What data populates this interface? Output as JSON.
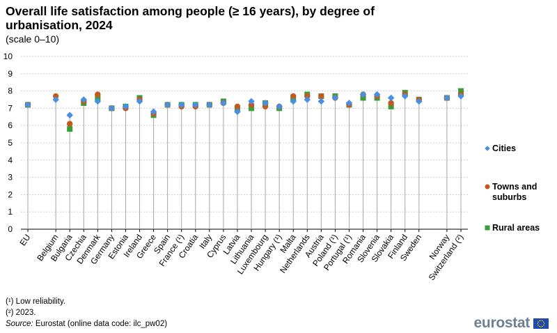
{
  "header": {
    "title": "Overall life satisfaction among people (≥ 16 years), by degree of urbanisation, 2024",
    "subtitle": "(scale 0–10)"
  },
  "footnotes": [
    "(¹) Low reliability.",
    "(²) 2023."
  ],
  "source": {
    "label": "Source:",
    "text": " Eurostat (online data code: ilc_pw02)"
  },
  "logo": {
    "word": "eurostat",
    "flag_icon": "eu-flag-icon"
  },
  "colors": {
    "cities": "#4a90e2",
    "towns": "#c4591d",
    "rural": "#3a9d3a",
    "grid": "#cfcfcf",
    "stem": "#a6a6a6"
  },
  "chart_data": {
    "type": "scatter",
    "ylim": [
      0,
      10
    ],
    "yticks": [
      "0",
      "1",
      "2",
      "3",
      "4",
      "5",
      "6",
      "7",
      "8",
      "9",
      "10"
    ],
    "grid": true,
    "legend_placement": "right",
    "categories": [
      "EU",
      "",
      "Belgium",
      "Bulgaria",
      "Czechia",
      "Denmark",
      "Germany",
      "Estonia",
      "Ireland",
      "Greece",
      "Spain",
      "France (¹)",
      "Croatia",
      "Italy",
      "Cyprus",
      "Latvia",
      "Lithuania",
      "Luxembourg",
      "Hungary (¹)",
      "Malta",
      "Netherlands",
      "Austria",
      "Poland (¹)",
      "Portugal (¹)",
      "Romania",
      "Slovenia",
      "Slovakia",
      "Finland",
      "Sweden",
      "",
      "Norway",
      "Switzerland (²)"
    ],
    "series": [
      {
        "name": "Rural areas",
        "marker": "square",
        "values": [
          7.2,
          null,
          null,
          5.8,
          7.3,
          7.6,
          7.0,
          7.1,
          7.6,
          6.6,
          7.2,
          7.2,
          7.2,
          7.2,
          7.4,
          7.0,
          7.0,
          7.3,
          7.0,
          7.6,
          7.8,
          7.7,
          7.7,
          7.2,
          7.6,
          7.6,
          7.1,
          7.9,
          7.5,
          null,
          7.6,
          8.0
        ]
      },
      {
        "name": "Towns and suburbs",
        "marker": "circle",
        "values": [
          7.2,
          null,
          7.7,
          6.1,
          7.4,
          7.8,
          7.0,
          7.0,
          7.5,
          6.7,
          7.2,
          7.1,
          7.1,
          7.2,
          7.3,
          7.1,
          7.2,
          7.1,
          7.1,
          7.7,
          7.7,
          7.7,
          7.6,
          7.2,
          7.8,
          7.7,
          7.3,
          7.8,
          7.5,
          null,
          7.6,
          7.8
        ]
      },
      {
        "name": "Cities",
        "marker": "diamond",
        "values": [
          7.2,
          null,
          7.5,
          6.6,
          7.5,
          7.4,
          7.0,
          7.1,
          7.4,
          6.8,
          7.2,
          7.2,
          7.2,
          7.2,
          7.3,
          6.8,
          7.4,
          7.3,
          7.1,
          7.4,
          7.5,
          7.4,
          7.6,
          7.3,
          7.8,
          7.8,
          7.6,
          7.7,
          7.4,
          null,
          7.6,
          7.7
        ]
      }
    ]
  }
}
